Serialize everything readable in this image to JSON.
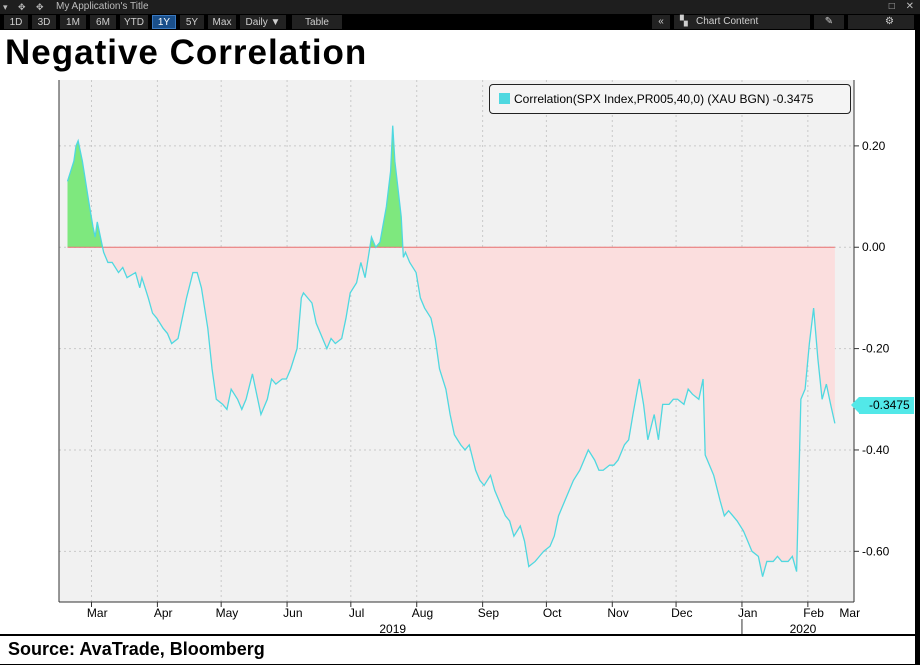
{
  "app": {
    "title": "My Application's Title",
    "window_icons": "▾ ✥ ✥",
    "window_controls": [
      "□",
      "✕"
    ]
  },
  "toolbar": {
    "ranges": [
      "1D",
      "3D",
      "1M",
      "6M",
      "YTD",
      "1Y",
      "5Y",
      "Max"
    ],
    "active_range": "1Y",
    "period": "Daily ▼",
    "table": "Table",
    "collapse": "«",
    "chart_content": "Chart Content",
    "edit_icon": "pencil-icon",
    "settings_icon": "gear-icon"
  },
  "title": "Negative Correlation",
  "source": "Source: AvaTrade, Bloomberg",
  "legend_text": "Correlation(SPX Index,PR005,40,0) (XAU BGN) -0.3475",
  "last_value_label": "-0.3475",
  "colors": {
    "positive_fill": "#7ee87e",
    "negative_fill": "#f47a7a",
    "line": "#4fd8e0",
    "plot_bg": "#f1f1f1"
  },
  "chart_data": {
    "type": "area",
    "series": [
      {
        "name": "Correlation(SPX Index,PR005,40,0) (XAU BGN)",
        "last": -0.3475,
        "points": [
          [
            "2019-03-01",
            0.13
          ],
          [
            "2019-03-04",
            0.17
          ],
          [
            "2019-03-05",
            0.2
          ],
          [
            "2019-03-06",
            0.21
          ],
          [
            "2019-03-08",
            0.17
          ],
          [
            "2019-03-11",
            0.09
          ],
          [
            "2019-03-13",
            0.04
          ],
          [
            "2019-03-14",
            0.02
          ],
          [
            "2019-03-15",
            0.05
          ],
          [
            "2019-03-18",
            -0.01
          ],
          [
            "2019-03-20",
            -0.03
          ],
          [
            "2019-03-22",
            -0.03
          ],
          [
            "2019-03-25",
            -0.05
          ],
          [
            "2019-03-27",
            -0.04
          ],
          [
            "2019-03-29",
            -0.06
          ],
          [
            "2019-04-02",
            -0.05
          ],
          [
            "2019-04-04",
            -0.08
          ],
          [
            "2019-04-05",
            -0.06
          ],
          [
            "2019-04-08",
            -0.1
          ],
          [
            "2019-04-10",
            -0.13
          ],
          [
            "2019-04-12",
            -0.14
          ],
          [
            "2019-04-15",
            -0.16
          ],
          [
            "2019-04-17",
            -0.17
          ],
          [
            "2019-04-19",
            -0.19
          ],
          [
            "2019-04-22",
            -0.18
          ],
          [
            "2019-04-24",
            -0.14
          ],
          [
            "2019-04-26",
            -0.1
          ],
          [
            "2019-04-29",
            -0.05
          ],
          [
            "2019-05-01",
            -0.05
          ],
          [
            "2019-05-03",
            -0.08
          ],
          [
            "2019-05-06",
            -0.16
          ],
          [
            "2019-05-08",
            -0.24
          ],
          [
            "2019-05-10",
            -0.3
          ],
          [
            "2019-05-13",
            -0.31
          ],
          [
            "2019-05-15",
            -0.32
          ],
          [
            "2019-05-17",
            -0.28
          ],
          [
            "2019-05-20",
            -0.3
          ],
          [
            "2019-05-22",
            -0.32
          ],
          [
            "2019-05-24",
            -0.3
          ],
          [
            "2019-05-27",
            -0.25
          ],
          [
            "2019-05-29",
            -0.29
          ],
          [
            "2019-05-31",
            -0.33
          ],
          [
            "2019-06-03",
            -0.3
          ],
          [
            "2019-06-05",
            -0.26
          ],
          [
            "2019-06-07",
            -0.27
          ],
          [
            "2019-06-10",
            -0.26
          ],
          [
            "2019-06-12",
            -0.26
          ],
          [
            "2019-06-14",
            -0.24
          ],
          [
            "2019-06-17",
            -0.2
          ],
          [
            "2019-06-19",
            -0.1
          ],
          [
            "2019-06-20",
            -0.09
          ],
          [
            "2019-06-24",
            -0.11
          ],
          [
            "2019-06-26",
            -0.15
          ],
          [
            "2019-06-28",
            -0.17
          ],
          [
            "2019-07-01",
            -0.2
          ],
          [
            "2019-07-03",
            -0.18
          ],
          [
            "2019-07-05",
            -0.19
          ],
          [
            "2019-07-08",
            -0.18
          ],
          [
            "2019-07-10",
            -0.14
          ],
          [
            "2019-07-12",
            -0.09
          ],
          [
            "2019-07-15",
            -0.07
          ],
          [
            "2019-07-17",
            -0.03
          ],
          [
            "2019-07-19",
            -0.06
          ],
          [
            "2019-07-22",
            0.02
          ],
          [
            "2019-07-24",
            0.0
          ],
          [
            "2019-07-26",
            0.01
          ],
          [
            "2019-07-29",
            0.08
          ],
          [
            "2019-07-31",
            0.15
          ],
          [
            "2019-08-01",
            0.24
          ],
          [
            "2019-08-02",
            0.17
          ],
          [
            "2019-08-05",
            0.06
          ],
          [
            "2019-08-06",
            -0.02
          ],
          [
            "2019-08-07",
            -0.01
          ],
          [
            "2019-08-09",
            -0.03
          ],
          [
            "2019-08-12",
            -0.05
          ],
          [
            "2019-08-14",
            -0.1
          ],
          [
            "2019-08-16",
            -0.12
          ],
          [
            "2019-08-19",
            -0.14
          ],
          [
            "2019-08-21",
            -0.18
          ],
          [
            "2019-08-23",
            -0.24
          ],
          [
            "2019-08-26",
            -0.28
          ],
          [
            "2019-08-28",
            -0.33
          ],
          [
            "2019-08-30",
            -0.37
          ],
          [
            "2019-09-02",
            -0.39
          ],
          [
            "2019-09-04",
            -0.4
          ],
          [
            "2019-09-06",
            -0.39
          ],
          [
            "2019-09-09",
            -0.44
          ],
          [
            "2019-09-11",
            -0.46
          ],
          [
            "2019-09-13",
            -0.47
          ],
          [
            "2019-09-16",
            -0.45
          ],
          [
            "2019-09-18",
            -0.48
          ],
          [
            "2019-09-20",
            -0.5
          ],
          [
            "2019-09-23",
            -0.53
          ],
          [
            "2019-09-25",
            -0.54
          ],
          [
            "2019-09-27",
            -0.57
          ],
          [
            "2019-09-30",
            -0.55
          ],
          [
            "2019-10-02",
            -0.58
          ],
          [
            "2019-10-04",
            -0.63
          ],
          [
            "2019-10-07",
            -0.62
          ],
          [
            "2019-10-09",
            -0.61
          ],
          [
            "2019-10-11",
            -0.6
          ],
          [
            "2019-10-14",
            -0.59
          ],
          [
            "2019-10-16",
            -0.57
          ],
          [
            "2019-10-18",
            -0.53
          ],
          [
            "2019-10-21",
            -0.5
          ],
          [
            "2019-10-23",
            -0.48
          ],
          [
            "2019-10-25",
            -0.46
          ],
          [
            "2019-10-28",
            -0.44
          ],
          [
            "2019-10-30",
            -0.42
          ],
          [
            "2019-11-01",
            -0.4
          ],
          [
            "2019-11-04",
            -0.42
          ],
          [
            "2019-11-06",
            -0.44
          ],
          [
            "2019-11-08",
            -0.44
          ],
          [
            "2019-11-11",
            -0.43
          ],
          [
            "2019-11-13",
            -0.43
          ],
          [
            "2019-11-15",
            -0.42
          ],
          [
            "2019-11-18",
            -0.39
          ],
          [
            "2019-11-20",
            -0.38
          ],
          [
            "2019-11-22",
            -0.33
          ],
          [
            "2019-11-25",
            -0.26
          ],
          [
            "2019-11-27",
            -0.31
          ],
          [
            "2019-11-29",
            -0.38
          ],
          [
            "2019-12-02",
            -0.33
          ],
          [
            "2019-12-04",
            -0.38
          ],
          [
            "2019-12-06",
            -0.31
          ],
          [
            "2019-12-09",
            -0.31
          ],
          [
            "2019-12-11",
            -0.3
          ],
          [
            "2019-12-13",
            -0.3
          ],
          [
            "2019-12-16",
            -0.31
          ],
          [
            "2019-12-18",
            -0.28
          ],
          [
            "2019-12-20",
            -0.29
          ],
          [
            "2019-12-23",
            -0.3
          ],
          [
            "2019-12-25",
            -0.26
          ],
          [
            "2019-12-26",
            -0.41
          ],
          [
            "2019-12-28",
            -0.43
          ],
          [
            "2019-12-30",
            -0.45
          ],
          [
            "2020-01-02",
            -0.5
          ],
          [
            "2020-01-04",
            -0.53
          ],
          [
            "2020-01-06",
            -0.52
          ],
          [
            "2020-01-08",
            -0.53
          ],
          [
            "2020-01-10",
            -0.54
          ],
          [
            "2020-01-13",
            -0.56
          ],
          [
            "2020-01-15",
            -0.58
          ],
          [
            "2020-01-17",
            -0.6
          ],
          [
            "2020-01-20",
            -0.61
          ],
          [
            "2020-01-22",
            -0.65
          ],
          [
            "2020-01-24",
            -0.62
          ],
          [
            "2020-01-27",
            -0.62
          ],
          [
            "2020-01-29",
            -0.61
          ],
          [
            "2020-01-31",
            -0.62
          ],
          [
            "2020-02-03",
            -0.62
          ],
          [
            "2020-02-05",
            -0.61
          ],
          [
            "2020-02-07",
            -0.64
          ],
          [
            "2020-02-09",
            -0.3
          ],
          [
            "2020-02-11",
            -0.28
          ],
          [
            "2020-02-13",
            -0.19
          ],
          [
            "2020-02-15",
            -0.12
          ],
          [
            "2020-02-17",
            -0.22
          ],
          [
            "2020-02-19",
            -0.3
          ],
          [
            "2020-02-21",
            -0.27
          ],
          [
            "2020-02-23",
            -0.31
          ],
          [
            "2020-02-25",
            -0.3475
          ]
        ]
      }
    ],
    "x_ticks": [
      "Mar",
      "Apr",
      "May",
      "Jun",
      "Jul",
      "Aug",
      "Sep",
      "Oct",
      "Nov",
      "Dec",
      "Jan",
      "Feb",
      "Mar"
    ],
    "x_year_labels": [
      "2019",
      "2020"
    ],
    "y_ticks": [
      "0.20",
      "0.00",
      "-0.20",
      "-0.40",
      "-0.60"
    ],
    "ylim": [
      -0.7,
      0.33
    ],
    "grid": true,
    "legend": "top-right"
  }
}
